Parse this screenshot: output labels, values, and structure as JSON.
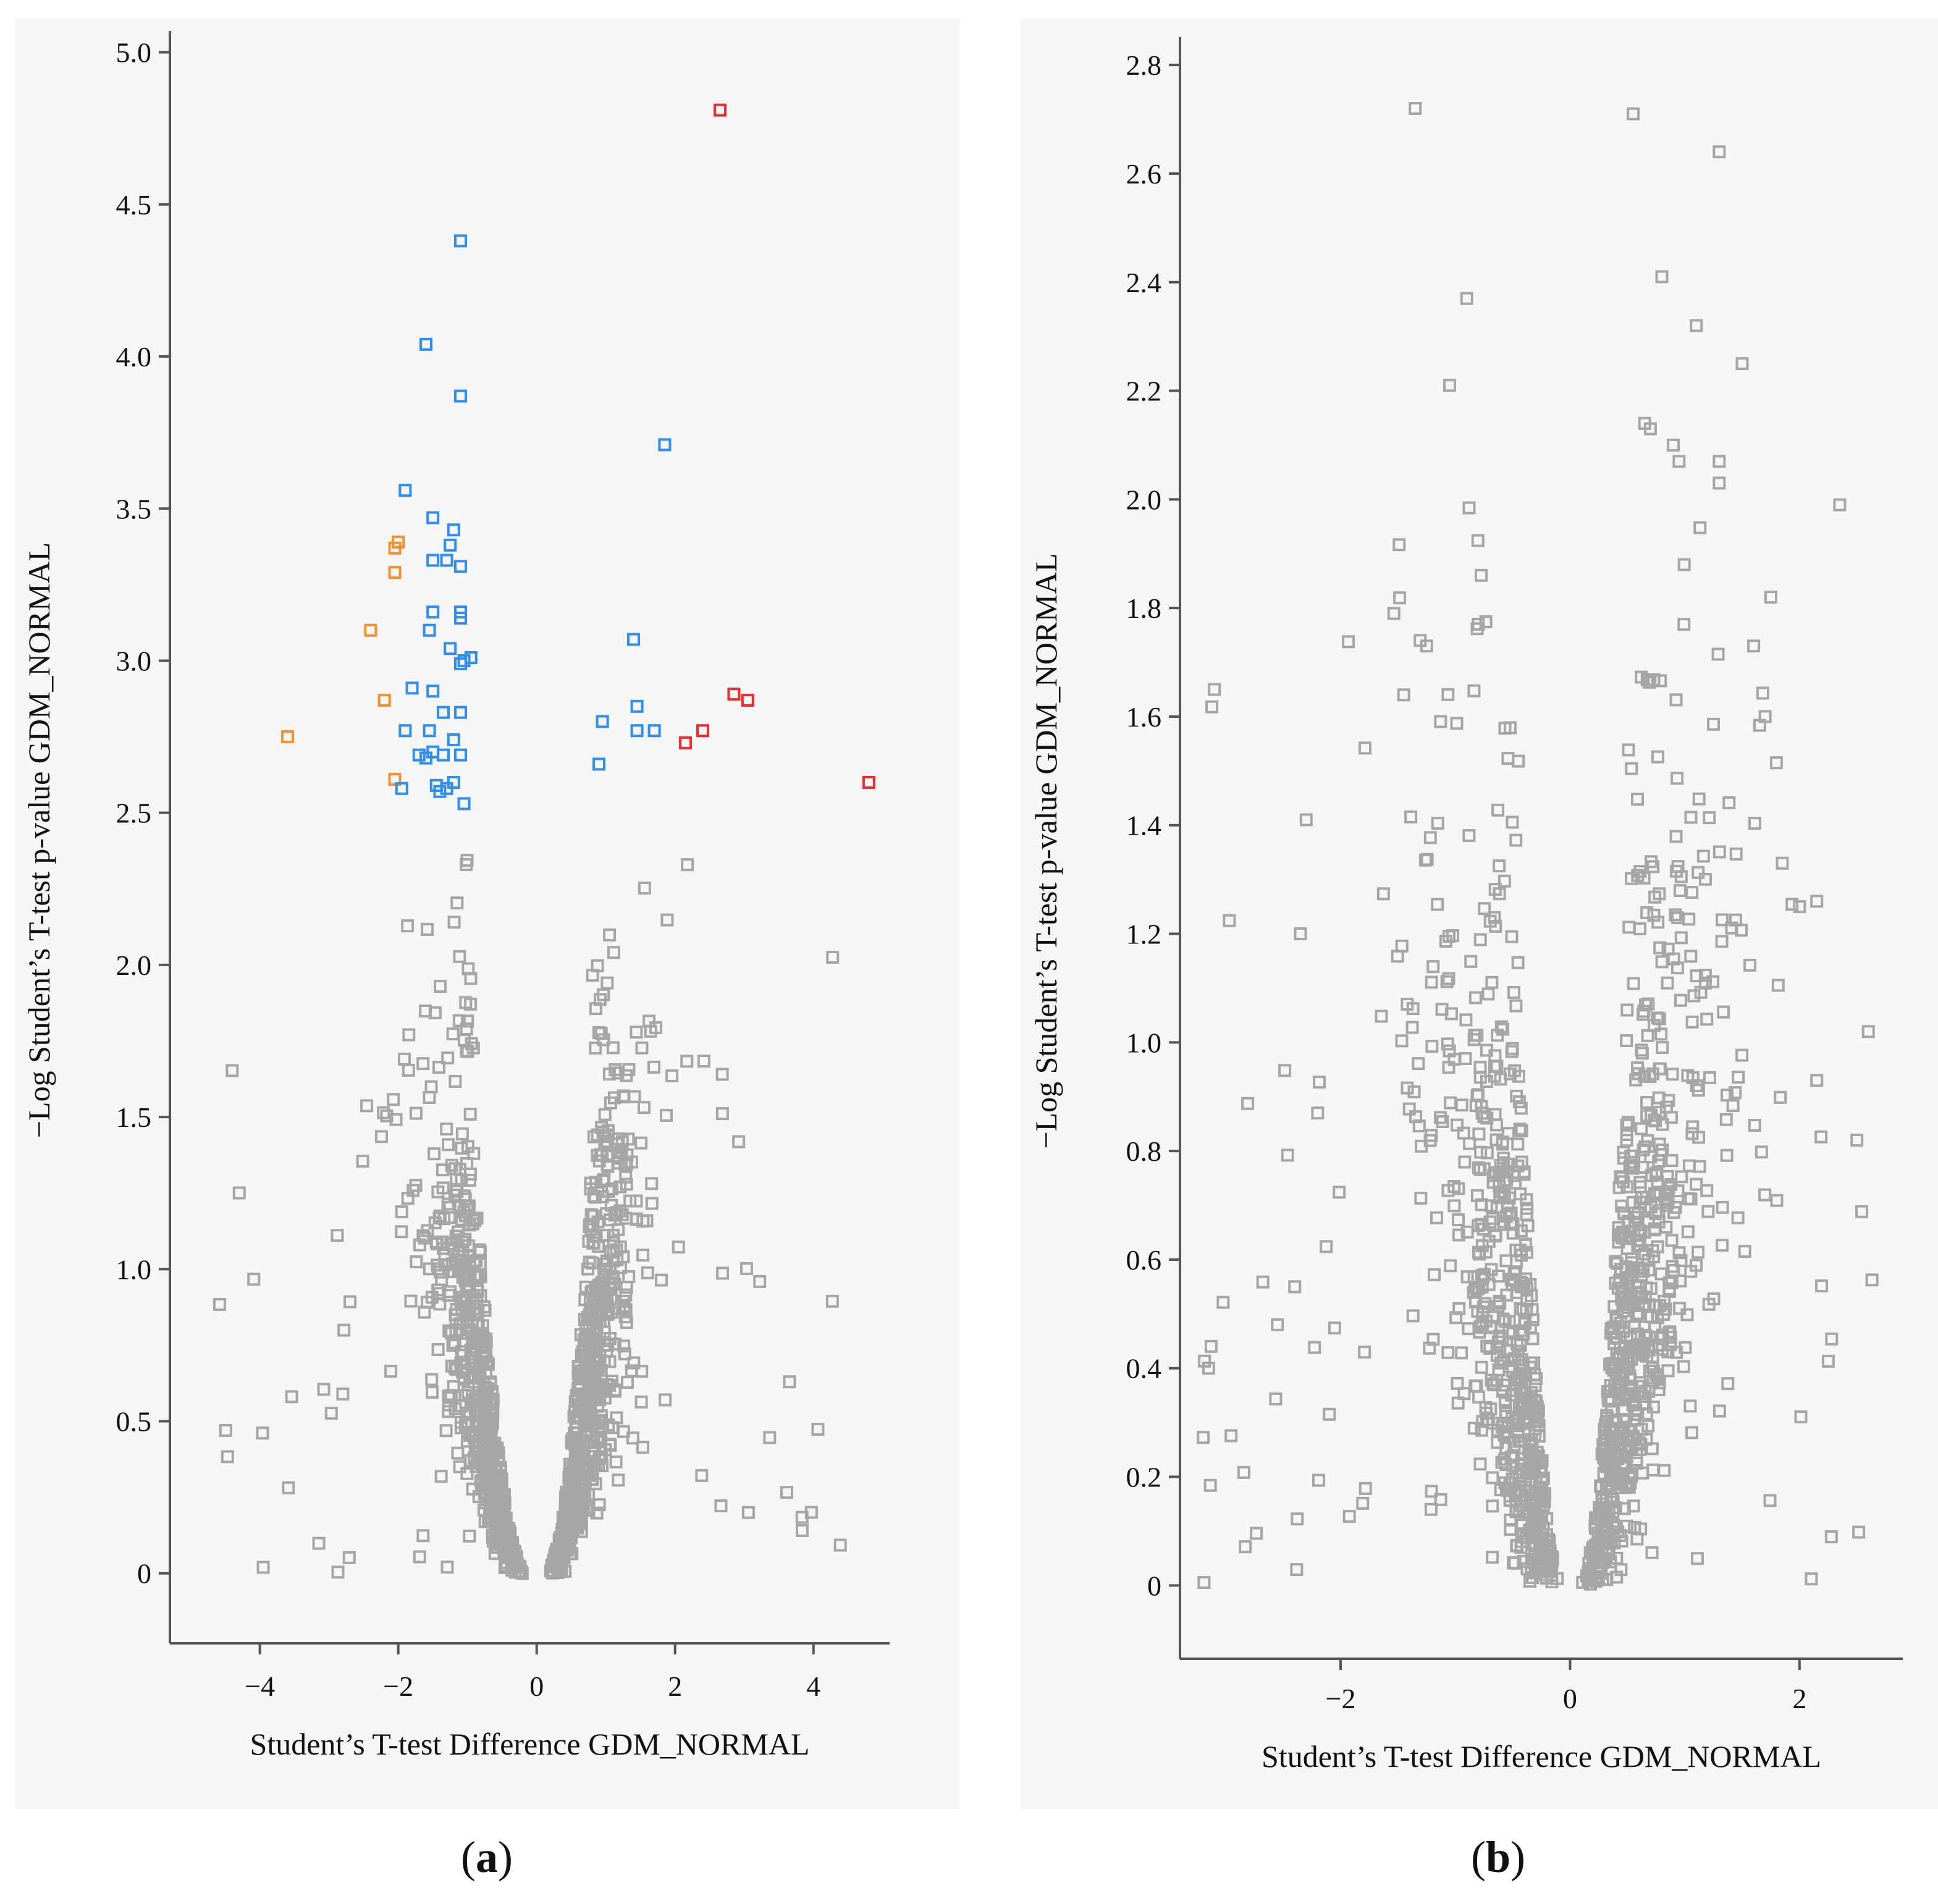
{
  "figure": {
    "panel_a_label": "(a)",
    "panel_a_letter": "a",
    "panel_b_label": "(b)",
    "panel_b_letter": "b"
  },
  "colors": {
    "background_points": "#a6a6a6",
    "blue": "#2f8ef0",
    "orange": "#f5922f",
    "red": "#ef2b2b",
    "axis": "#555555",
    "panel_bg": "#f6f6f6"
  },
  "chart_data": [
    {
      "id": "a",
      "type": "scatter",
      "title": "",
      "xlabel": "Student’s T-test Difference GDM_NORMAL",
      "ylabel": "−Log Student’s T-test p-value GDM_NORMAL",
      "xlim": [
        -5.3,
        5.1
      ],
      "ylim": [
        -0.23,
        5.05
      ],
      "xticks": [
        -4,
        -2,
        0,
        2,
        4
      ],
      "xtick_labels": [
        "−4",
        "−2",
        "0",
        "2",
        "4"
      ],
      "yticks": [
        0,
        0.5,
        1.0,
        1.5,
        2.0,
        2.5,
        3.0,
        3.5,
        4.0,
        4.5,
        5.0
      ],
      "ytick_labels": [
        "0",
        "0.5",
        "1.0",
        "1.5",
        "2.0",
        "2.5",
        "3.0",
        "3.5",
        "4.0",
        "4.5",
        "5.0"
      ],
      "grid": false,
      "background_cloud": {
        "count": 1150,
        "seed": 7,
        "left_center": -0.9,
        "right_center": 0.8,
        "max_y": 2.5,
        "min_x": -4.6,
        "max_x": 4.6
      },
      "series": [
        {
          "name": "orange",
          "color_key": "orange",
          "points": [
            [
              -3.6,
              2.75
            ],
            [
              -2.4,
              3.1
            ],
            [
              -2.2,
              2.87
            ],
            [
              -2.05,
              3.37
            ],
            [
              -2.0,
              3.39
            ],
            [
              -2.05,
              3.29
            ],
            [
              -2.05,
              2.61
            ]
          ]
        },
        {
          "name": "blue",
          "color_key": "blue",
          "points": [
            [
              -1.1,
              4.38
            ],
            [
              -1.6,
              4.04
            ],
            [
              -1.1,
              3.87
            ],
            [
              -1.9,
              3.56
            ],
            [
              -1.5,
              3.47
            ],
            [
              -1.2,
              3.43
            ],
            [
              -1.25,
              3.38
            ],
            [
              -1.5,
              3.33
            ],
            [
              -1.3,
              3.33
            ],
            [
              -1.1,
              3.31
            ],
            [
              -1.5,
              3.16
            ],
            [
              -1.1,
              3.16
            ],
            [
              -1.1,
              3.14
            ],
            [
              -1.55,
              3.1
            ],
            [
              -1.25,
              3.04
            ],
            [
              -0.95,
              3.01
            ],
            [
              -1.05,
              3.0
            ],
            [
              -1.1,
              2.99
            ],
            [
              -1.8,
              2.91
            ],
            [
              -1.5,
              2.9
            ],
            [
              -1.35,
              2.83
            ],
            [
              -1.1,
              2.83
            ],
            [
              -1.9,
              2.77
            ],
            [
              -1.55,
              2.77
            ],
            [
              -1.2,
              2.74
            ],
            [
              -1.5,
              2.7
            ],
            [
              -1.7,
              2.69
            ],
            [
              -1.6,
              2.68
            ],
            [
              -1.35,
              2.69
            ],
            [
              -1.1,
              2.69
            ],
            [
              -1.2,
              2.6
            ],
            [
              -1.45,
              2.59
            ],
            [
              -1.4,
              2.57
            ],
            [
              -1.3,
              2.58
            ],
            [
              -1.95,
              2.58
            ],
            [
              -1.05,
              2.53
            ],
            [
              1.85,
              3.71
            ],
            [
              1.4,
              3.07
            ],
            [
              0.95,
              2.8
            ],
            [
              1.45,
              2.85
            ],
            [
              1.45,
              2.77
            ],
            [
              1.7,
              2.77
            ],
            [
              0.9,
              2.66
            ]
          ]
        },
        {
          "name": "red",
          "color_key": "red",
          "points": [
            [
              2.65,
              4.81
            ],
            [
              2.85,
              2.89
            ],
            [
              3.05,
              2.87
            ],
            [
              2.4,
              2.77
            ],
            [
              2.15,
              2.73
            ],
            [
              4.8,
              2.6
            ]
          ]
        }
      ]
    },
    {
      "id": "b",
      "type": "scatter",
      "title": "",
      "xlabel": "Student’s T-test Difference GDM_NORMAL",
      "ylabel": "−Log Student’s T-test p-value GDM_NORMAL",
      "xlim": [
        -3.4,
        2.9
      ],
      "ylim": [
        -0.135,
        2.84
      ],
      "xticks": [
        -2,
        0,
        2
      ],
      "xtick_labels": [
        "−2",
        "0",
        "2"
      ],
      "yticks": [
        0,
        0.2,
        0.4,
        0.6,
        0.8,
        1.0,
        1.2,
        1.4,
        1.6,
        1.8,
        2.0,
        2.2,
        2.4,
        2.6,
        2.8
      ],
      "ytick_labels": [
        "0",
        "0.2",
        "0.4",
        "0.6",
        "0.8",
        "1.0",
        "1.2",
        "1.4",
        "1.6",
        "1.8",
        "2.0",
        "2.2",
        "2.4",
        "2.6",
        "2.8"
      ],
      "grid": false,
      "background_cloud": {
        "count": 1250,
        "seed": 19,
        "left_center": -0.45,
        "right_center": 0.5,
        "max_y": 2.0,
        "min_x": -3.2,
        "max_x": 2.7
      },
      "series": [
        {
          "name": "gray",
          "color_key": "background_points",
          "points": [
            [
              -1.35,
              2.72
            ],
            [
              0.55,
              2.71
            ],
            [
              1.3,
              2.64
            ],
            [
              0.8,
              2.41
            ],
            [
              -0.9,
              2.37
            ],
            [
              1.1,
              2.32
            ],
            [
              1.5,
              2.25
            ],
            [
              -1.05,
              2.21
            ],
            [
              0.65,
              2.14
            ],
            [
              0.7,
              2.13
            ],
            [
              0.9,
              2.1
            ],
            [
              1.3,
              2.07
            ],
            [
              0.95,
              2.07
            ],
            [
              1.3,
              2.03
            ],
            [
              2.35,
              1.99
            ],
            [
              -3.1,
              1.65
            ],
            [
              -2.3,
              1.41
            ],
            [
              -2.35,
              1.2
            ],
            [
              -2.2,
              0.87
            ],
            [
              -2.4,
              0.55
            ],
            [
              -2.55,
              0.48
            ],
            [
              -3.15,
              0.4
            ],
            [
              2.6,
              1.02
            ],
            [
              2.5,
              0.82
            ],
            [
              2.15,
              0.93
            ],
            [
              2.15,
              1.26
            ],
            [
              2.0,
              1.25
            ],
            [
              1.85,
              1.33
            ],
            [
              1.75,
              1.82
            ],
            [
              1.6,
              1.73
            ],
            [
              1.7,
              1.6
            ],
            [
              -0.8,
              1.77
            ],
            [
              -1.45,
              1.64
            ],
            [
              -1.25,
              1.73
            ]
          ]
        }
      ]
    }
  ]
}
